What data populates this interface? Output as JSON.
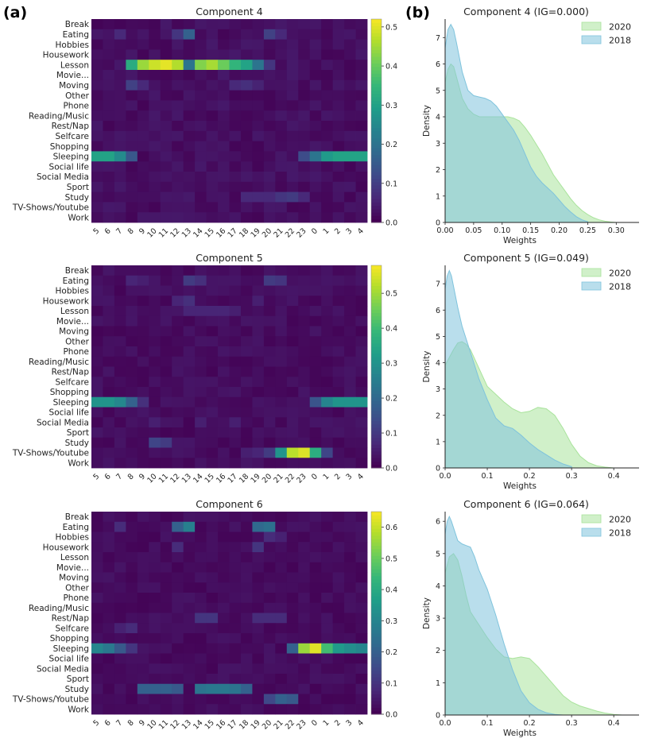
{
  "panel_labels": {
    "a": "(a)",
    "b": "(b)"
  },
  "chart_data": [
    {
      "type": "heatmap",
      "title": "Component 4",
      "rows": [
        "Break",
        "Eating",
        "Hobbies",
        "Housework",
        "Lesson",
        "Movie...",
        "Moving",
        "Other",
        "Phone",
        "Reading/Music",
        "Rest/Nap",
        "Selfcare",
        "Shopping",
        "Sleeping",
        "Social life",
        "Social Media",
        "Sport",
        "Study",
        "TV-Shows/Youtube",
        "Work"
      ],
      "columns": [
        "5",
        "6",
        "7",
        "8",
        "9",
        "10",
        "11",
        "12",
        "13",
        "14",
        "15",
        "16",
        "17",
        "18",
        "19",
        "20",
        "21",
        "22",
        "23",
        "0",
        "1",
        "2",
        "3",
        "4"
      ],
      "colorbar": {
        "min": 0.0,
        "max": 0.52,
        "ticks": [
          "0.0",
          "0.1",
          "0.2",
          "0.3",
          "0.4",
          "0.5"
        ],
        "tick_values": [
          0,
          0.1,
          0.2,
          0.3,
          0.4,
          0.5
        ]
      },
      "highlights": [
        {
          "row": "Lesson",
          "values": {
            "8": 0.32,
            "9": 0.44,
            "10": 0.48,
            "11": 0.5,
            "12": 0.46,
            "13": 0.2,
            "14": 0.42,
            "15": 0.45,
            "16": 0.4,
            "17": 0.34,
            "18": 0.3,
            "19": 0.2,
            "20": 0.08
          }
        },
        {
          "row": "Sleeping",
          "values": {
            "5": 0.3,
            "6": 0.3,
            "7": 0.25,
            "8": 0.14,
            "23": 0.12,
            "0": 0.2,
            "1": 0.28,
            "2": 0.3,
            "3": 0.3,
            "4": 0.3
          }
        },
        {
          "row": "Eating",
          "values": {
            "7": 0.06,
            "12": 0.08,
            "13": 0.16,
            "20": 0.1,
            "21": 0.06
          }
        },
        {
          "row": "Moving",
          "values": {
            "8": 0.1,
            "9": 0.06,
            "17": 0.06,
            "18": 0.07,
            "19": 0.05
          }
        },
        {
          "row": "Study",
          "values": {
            "18": 0.06,
            "19": 0.06,
            "20": 0.06,
            "21": 0.08,
            "22": 0.09,
            "23": 0.06
          }
        }
      ]
    },
    {
      "type": "heatmap",
      "title": "Component 5",
      "rows": [
        "Break",
        "Eating",
        "Hobbies",
        "Housework",
        "Lesson",
        "Movie...",
        "Moving",
        "Other",
        "Phone",
        "Reading/Music",
        "Rest/Nap",
        "Selfcare",
        "Shopping",
        "Sleeping",
        "Social life",
        "Social Media",
        "Sport",
        "Study",
        "TV-Shows/Youtube",
        "Work"
      ],
      "columns": [
        "5",
        "6",
        "7",
        "8",
        "9",
        "10",
        "11",
        "12",
        "13",
        "14",
        "15",
        "16",
        "17",
        "18",
        "19",
        "20",
        "21",
        "22",
        "23",
        "0",
        "1",
        "2",
        "3",
        "4"
      ],
      "colorbar": {
        "min": 0.0,
        "max": 0.58,
        "ticks": [
          "0.0",
          "0.1",
          "0.2",
          "0.3",
          "0.4",
          "0.5"
        ],
        "tick_values": [
          0,
          0.1,
          0.2,
          0.3,
          0.4,
          0.5
        ]
      },
      "highlights": [
        {
          "row": "Sleeping",
          "values": {
            "5": 0.3,
            "6": 0.3,
            "7": 0.27,
            "8": 0.18,
            "9": 0.08,
            "0": 0.15,
            "1": 0.26,
            "2": 0.3,
            "3": 0.3,
            "4": 0.3
          }
        },
        {
          "row": "TV-Shows/Youtube",
          "values": {
            "18": 0.05,
            "19": 0.06,
            "20": 0.1,
            "21": 0.3,
            "22": 0.52,
            "23": 0.55,
            "0": 0.36,
            "1": 0.12
          }
        },
        {
          "row": "Eating",
          "values": {
            "8": 0.06,
            "9": 0.05,
            "13": 0.1,
            "14": 0.08,
            "20": 0.1,
            "21": 0.09
          }
        },
        {
          "row": "Housework",
          "values": {
            "12": 0.06,
            "13": 0.08,
            "19": 0.05
          }
        },
        {
          "row": "Lesson",
          "values": {
            "13": 0.06,
            "14": 0.06,
            "15": 0.06,
            "16": 0.06,
            "17": 0.05
          }
        },
        {
          "row": "Study",
          "values": {
            "10": 0.12,
            "11": 0.1
          }
        },
        {
          "row": "Social Media",
          "values": {
            "10": 0.05,
            "14": 0.05,
            "17": 0.05
          }
        }
      ]
    },
    {
      "type": "heatmap",
      "title": "Component 6",
      "rows": [
        "Break",
        "Eating",
        "Hobbies",
        "Housework",
        "Lesson",
        "Movie...",
        "Moving",
        "Other",
        "Phone",
        "Reading/Music",
        "Rest/Nap",
        "Selfcare",
        "Shopping",
        "Sleeping",
        "Social life",
        "Social Media",
        "Sport",
        "Study",
        "TV-Shows/Youtube",
        "Work"
      ],
      "columns": [
        "5",
        "6",
        "7",
        "8",
        "9",
        "10",
        "11",
        "12",
        "13",
        "14",
        "15",
        "16",
        "17",
        "18",
        "19",
        "20",
        "21",
        "22",
        "23",
        "0",
        "1",
        "2",
        "3",
        "4"
      ],
      "colorbar": {
        "min": 0.0,
        "max": 0.65,
        "ticks": [
          "0.0",
          "0.1",
          "0.2",
          "0.3",
          "0.4",
          "0.5",
          "0.6"
        ],
        "tick_values": [
          0,
          0.1,
          0.2,
          0.3,
          0.4,
          0.5,
          0.6
        ]
      },
      "highlights": [
        {
          "row": "Sleeping",
          "values": {
            "5": 0.3,
            "6": 0.26,
            "7": 0.18,
            "8": 0.1,
            "22": 0.2,
            "23": 0.55,
            "0": 0.62,
            "1": 0.45,
            "2": 0.35,
            "3": 0.32,
            "4": 0.3
          }
        },
        {
          "row": "Study",
          "values": {
            "9": 0.2,
            "10": 0.2,
            "11": 0.2,
            "12": 0.18,
            "14": 0.25,
            "15": 0.26,
            "16": 0.26,
            "17": 0.25,
            "18": 0.2
          }
        },
        {
          "row": "Eating",
          "values": {
            "7": 0.08,
            "12": 0.2,
            "13": 0.28,
            "19": 0.22,
            "20": 0.24
          }
        },
        {
          "row": "Housework",
          "values": {
            "12": 0.08,
            "19": 0.1
          }
        },
        {
          "row": "Rest/Nap",
          "values": {
            "14": 0.1,
            "15": 0.1,
            "19": 0.08,
            "20": 0.08,
            "21": 0.08
          }
        },
        {
          "row": "TV-Shows/Youtube",
          "values": {
            "20": 0.14,
            "21": 0.2,
            "22": 0.18
          }
        },
        {
          "row": "Hobbies",
          "values": {
            "20": 0.08,
            "21": 0.06
          }
        },
        {
          "row": "Selfcare",
          "values": {
            "7": 0.06,
            "8": 0.08
          }
        }
      ]
    },
    {
      "type": "area",
      "title": "Component 4 (IG=0.000)",
      "xlabel": "Weights",
      "ylabel": "Density",
      "xlim": [
        0.0,
        0.34
      ],
      "ylim": [
        0,
        7.7
      ],
      "xticks": [
        "0.00",
        "0.05",
        "0.10",
        "0.15",
        "0.20",
        "0.25",
        "0.30"
      ],
      "xtick_values": [
        0,
        0.05,
        0.1,
        0.15,
        0.2,
        0.25,
        0.3
      ],
      "yticks": [
        "0",
        "1",
        "2",
        "3",
        "4",
        "5",
        "6",
        "7"
      ],
      "ytick_values": [
        0,
        1,
        2,
        3,
        4,
        5,
        6,
        7
      ],
      "legend": [
        "2020",
        "2018"
      ],
      "series": [
        {
          "name": "2020",
          "x": [
            0,
            0.005,
            0.01,
            0.015,
            0.02,
            0.03,
            0.04,
            0.05,
            0.06,
            0.07,
            0.08,
            0.09,
            0.1,
            0.11,
            0.12,
            0.13,
            0.14,
            0.15,
            0.16,
            0.17,
            0.18,
            0.19,
            0.2,
            0.21,
            0.22,
            0.23,
            0.24,
            0.25,
            0.26,
            0.27,
            0.28,
            0.29,
            0.3
          ],
          "values": [
            5.3,
            5.8,
            6.0,
            5.9,
            5.5,
            4.7,
            4.3,
            4.1,
            4.0,
            4.0,
            4.0,
            4.0,
            4.0,
            4.0,
            3.95,
            3.85,
            3.6,
            3.3,
            2.95,
            2.6,
            2.2,
            1.8,
            1.5,
            1.2,
            0.9,
            0.65,
            0.45,
            0.3,
            0.18,
            0.1,
            0.05,
            0.02,
            0.0
          ]
        },
        {
          "name": "2018",
          "x": [
            0,
            0.005,
            0.01,
            0.015,
            0.02,
            0.03,
            0.04,
            0.05,
            0.06,
            0.07,
            0.08,
            0.09,
            0.1,
            0.11,
            0.12,
            0.13,
            0.14,
            0.15,
            0.16,
            0.17,
            0.18,
            0.19,
            0.2,
            0.21,
            0.22,
            0.23,
            0.24,
            0.25
          ],
          "values": [
            6.6,
            7.3,
            7.5,
            7.3,
            6.8,
            5.7,
            5.0,
            4.8,
            4.75,
            4.7,
            4.6,
            4.4,
            4.1,
            3.8,
            3.5,
            3.1,
            2.6,
            2.1,
            1.75,
            1.5,
            1.3,
            1.1,
            0.85,
            0.6,
            0.4,
            0.22,
            0.1,
            0.03
          ]
        }
      ]
    },
    {
      "type": "area",
      "title": "Component 5 (IG=0.049)",
      "xlabel": "Weights",
      "ylabel": "Density",
      "xlim": [
        0.0,
        0.46
      ],
      "ylim": [
        0,
        7.7
      ],
      "xticks": [
        "0.0",
        "0.1",
        "0.2",
        "0.3",
        "0.4"
      ],
      "xtick_values": [
        0,
        0.1,
        0.2,
        0.3,
        0.4
      ],
      "yticks": [
        "0",
        "1",
        "2",
        "3",
        "4",
        "5",
        "6",
        "7"
      ],
      "ytick_values": [
        0,
        1,
        2,
        3,
        4,
        5,
        6,
        7
      ],
      "legend": [
        "2020",
        "2018"
      ],
      "series": [
        {
          "name": "2020",
          "x": [
            0,
            0.01,
            0.02,
            0.03,
            0.04,
            0.05,
            0.06,
            0.08,
            0.1,
            0.12,
            0.14,
            0.16,
            0.18,
            0.2,
            0.22,
            0.24,
            0.26,
            0.28,
            0.3,
            0.32,
            0.34,
            0.36,
            0.38,
            0.4
          ],
          "values": [
            3.9,
            4.2,
            4.5,
            4.75,
            4.8,
            4.7,
            4.5,
            3.8,
            3.1,
            2.8,
            2.5,
            2.25,
            2.1,
            2.15,
            2.3,
            2.25,
            2.0,
            1.5,
            0.9,
            0.45,
            0.2,
            0.08,
            0.03,
            0.0
          ]
        },
        {
          "name": "2018",
          "x": [
            0,
            0.005,
            0.01,
            0.015,
            0.02,
            0.03,
            0.04,
            0.05,
            0.06,
            0.07,
            0.08,
            0.1,
            0.12,
            0.14,
            0.16,
            0.18,
            0.2,
            0.22,
            0.24,
            0.26,
            0.28,
            0.3
          ],
          "values": [
            6.8,
            7.3,
            7.5,
            7.3,
            6.9,
            6.1,
            5.4,
            4.9,
            4.4,
            3.9,
            3.4,
            2.6,
            1.9,
            1.6,
            1.5,
            1.25,
            0.95,
            0.7,
            0.5,
            0.3,
            0.15,
            0.05
          ]
        }
      ]
    },
    {
      "type": "area",
      "title": "Component 6 (IG=0.064)",
      "xlabel": "Weights",
      "ylabel": "Density",
      "xlim": [
        0.0,
        0.46
      ],
      "ylim": [
        0,
        6.3
      ],
      "xticks": [
        "0.0",
        "0.1",
        "0.2",
        "0.3",
        "0.4"
      ],
      "xtick_values": [
        0,
        0.1,
        0.2,
        0.3,
        0.4
      ],
      "yticks": [
        "0",
        "1",
        "2",
        "3",
        "4",
        "5",
        "6"
      ],
      "ytick_values": [
        0,
        1,
        2,
        3,
        4,
        5,
        6
      ],
      "legend": [
        "2020",
        "2018"
      ],
      "series": [
        {
          "name": "2020",
          "x": [
            0,
            0.01,
            0.02,
            0.03,
            0.04,
            0.05,
            0.06,
            0.08,
            0.1,
            0.12,
            0.14,
            0.16,
            0.18,
            0.2,
            0.22,
            0.24,
            0.26,
            0.28,
            0.3,
            0.32,
            0.34,
            0.36,
            0.38,
            0.4,
            0.42
          ],
          "values": [
            4.4,
            4.9,
            5.0,
            4.8,
            4.3,
            3.7,
            3.2,
            2.8,
            2.4,
            2.05,
            1.8,
            1.75,
            1.8,
            1.75,
            1.5,
            1.2,
            0.9,
            0.6,
            0.4,
            0.28,
            0.2,
            0.12,
            0.06,
            0.02,
            0.0
          ]
        },
        {
          "name": "2018",
          "x": [
            0,
            0.005,
            0.01,
            0.015,
            0.02,
            0.03,
            0.04,
            0.05,
            0.06,
            0.07,
            0.08,
            0.1,
            0.12,
            0.14,
            0.16,
            0.18,
            0.2,
            0.22,
            0.24,
            0.26,
            0.28
          ],
          "values": [
            5.6,
            6.0,
            6.15,
            6.0,
            5.8,
            5.4,
            5.3,
            5.25,
            5.2,
            4.9,
            4.5,
            3.9,
            3.1,
            2.2,
            1.4,
            0.75,
            0.38,
            0.18,
            0.07,
            0.02,
            0.0
          ]
        }
      ]
    }
  ],
  "colors": {
    "kde_2020": "#a9e39c",
    "kde_2018": "#7fc3dc"
  }
}
